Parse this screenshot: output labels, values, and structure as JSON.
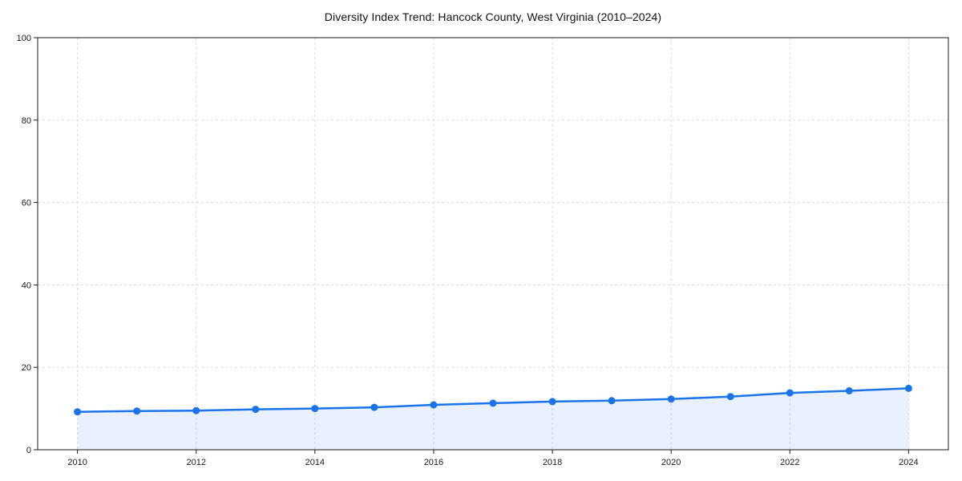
{
  "chart_data": {
    "type": "line",
    "title": "Diversity Index Trend: Hancock County, West Virginia (2010–2024)",
    "x": [
      2010,
      2011,
      2012,
      2013,
      2014,
      2015,
      2016,
      2017,
      2018,
      2019,
      2020,
      2021,
      2022,
      2023,
      2024
    ],
    "values": [
      9.2,
      9.4,
      9.5,
      9.8,
      10.0,
      10.3,
      10.9,
      11.3,
      11.7,
      11.9,
      12.3,
      12.9,
      13.8,
      14.3,
      14.9
    ],
    "xlabel": "",
    "ylabel": "",
    "xlim": [
      2009.33,
      2024.67
    ],
    "ylim": [
      0,
      100
    ],
    "xticks": [
      2010,
      2012,
      2014,
      2016,
      2018,
      2020,
      2022,
      2024
    ],
    "xtick_labels": [
      "2010",
      "2012",
      "2014",
      "2016",
      "2018",
      "2020",
      "2022",
      "2024"
    ],
    "yticks": [
      0,
      20,
      40,
      60,
      80,
      100
    ],
    "ytick_labels": [
      "0",
      "20",
      "40",
      "60",
      "80",
      "100"
    ],
    "grid": "dashed",
    "legend": "none",
    "marker": "circle",
    "colors": {
      "line": "#1a73e8",
      "marker": "#1a73e8",
      "area_fill": "#1a73e8",
      "area_opacity": 0.1,
      "grid": "#dddddd",
      "spine": "#1a1a1a",
      "tick_label": "#1a1a1a",
      "title": "#111111",
      "background": "#ffffff"
    }
  }
}
